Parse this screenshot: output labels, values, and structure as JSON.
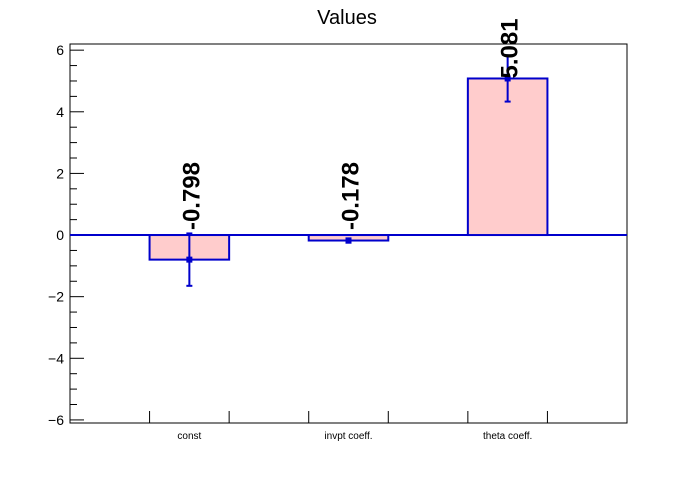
{
  "chart_data": {
    "type": "bar",
    "title": "Values",
    "categories": [
      "const",
      "invpt coeff.",
      "theta coeff."
    ],
    "values": [
      -0.798,
      -0.178,
      5.081
    ],
    "errors": [
      0.85,
      0.07,
      0.75
    ],
    "value_labels": [
      "-0.798",
      "-0.178",
      "5.081"
    ],
    "ylim": [
      -6.1,
      6.2
    ],
    "yticks": [
      -6,
      -4,
      -2,
      0,
      2,
      4,
      6
    ],
    "ytick_labels": [
      "−6",
      "−4",
      "−2",
      "0",
      "2",
      "4",
      "6"
    ],
    "grid": false,
    "legend": "none",
    "colors": {
      "bar_fill": "#ffcccc",
      "bar_edge": "#0000cc",
      "error": "#0000cc",
      "zero_line": "#0000cc",
      "axis": "#000000"
    }
  }
}
